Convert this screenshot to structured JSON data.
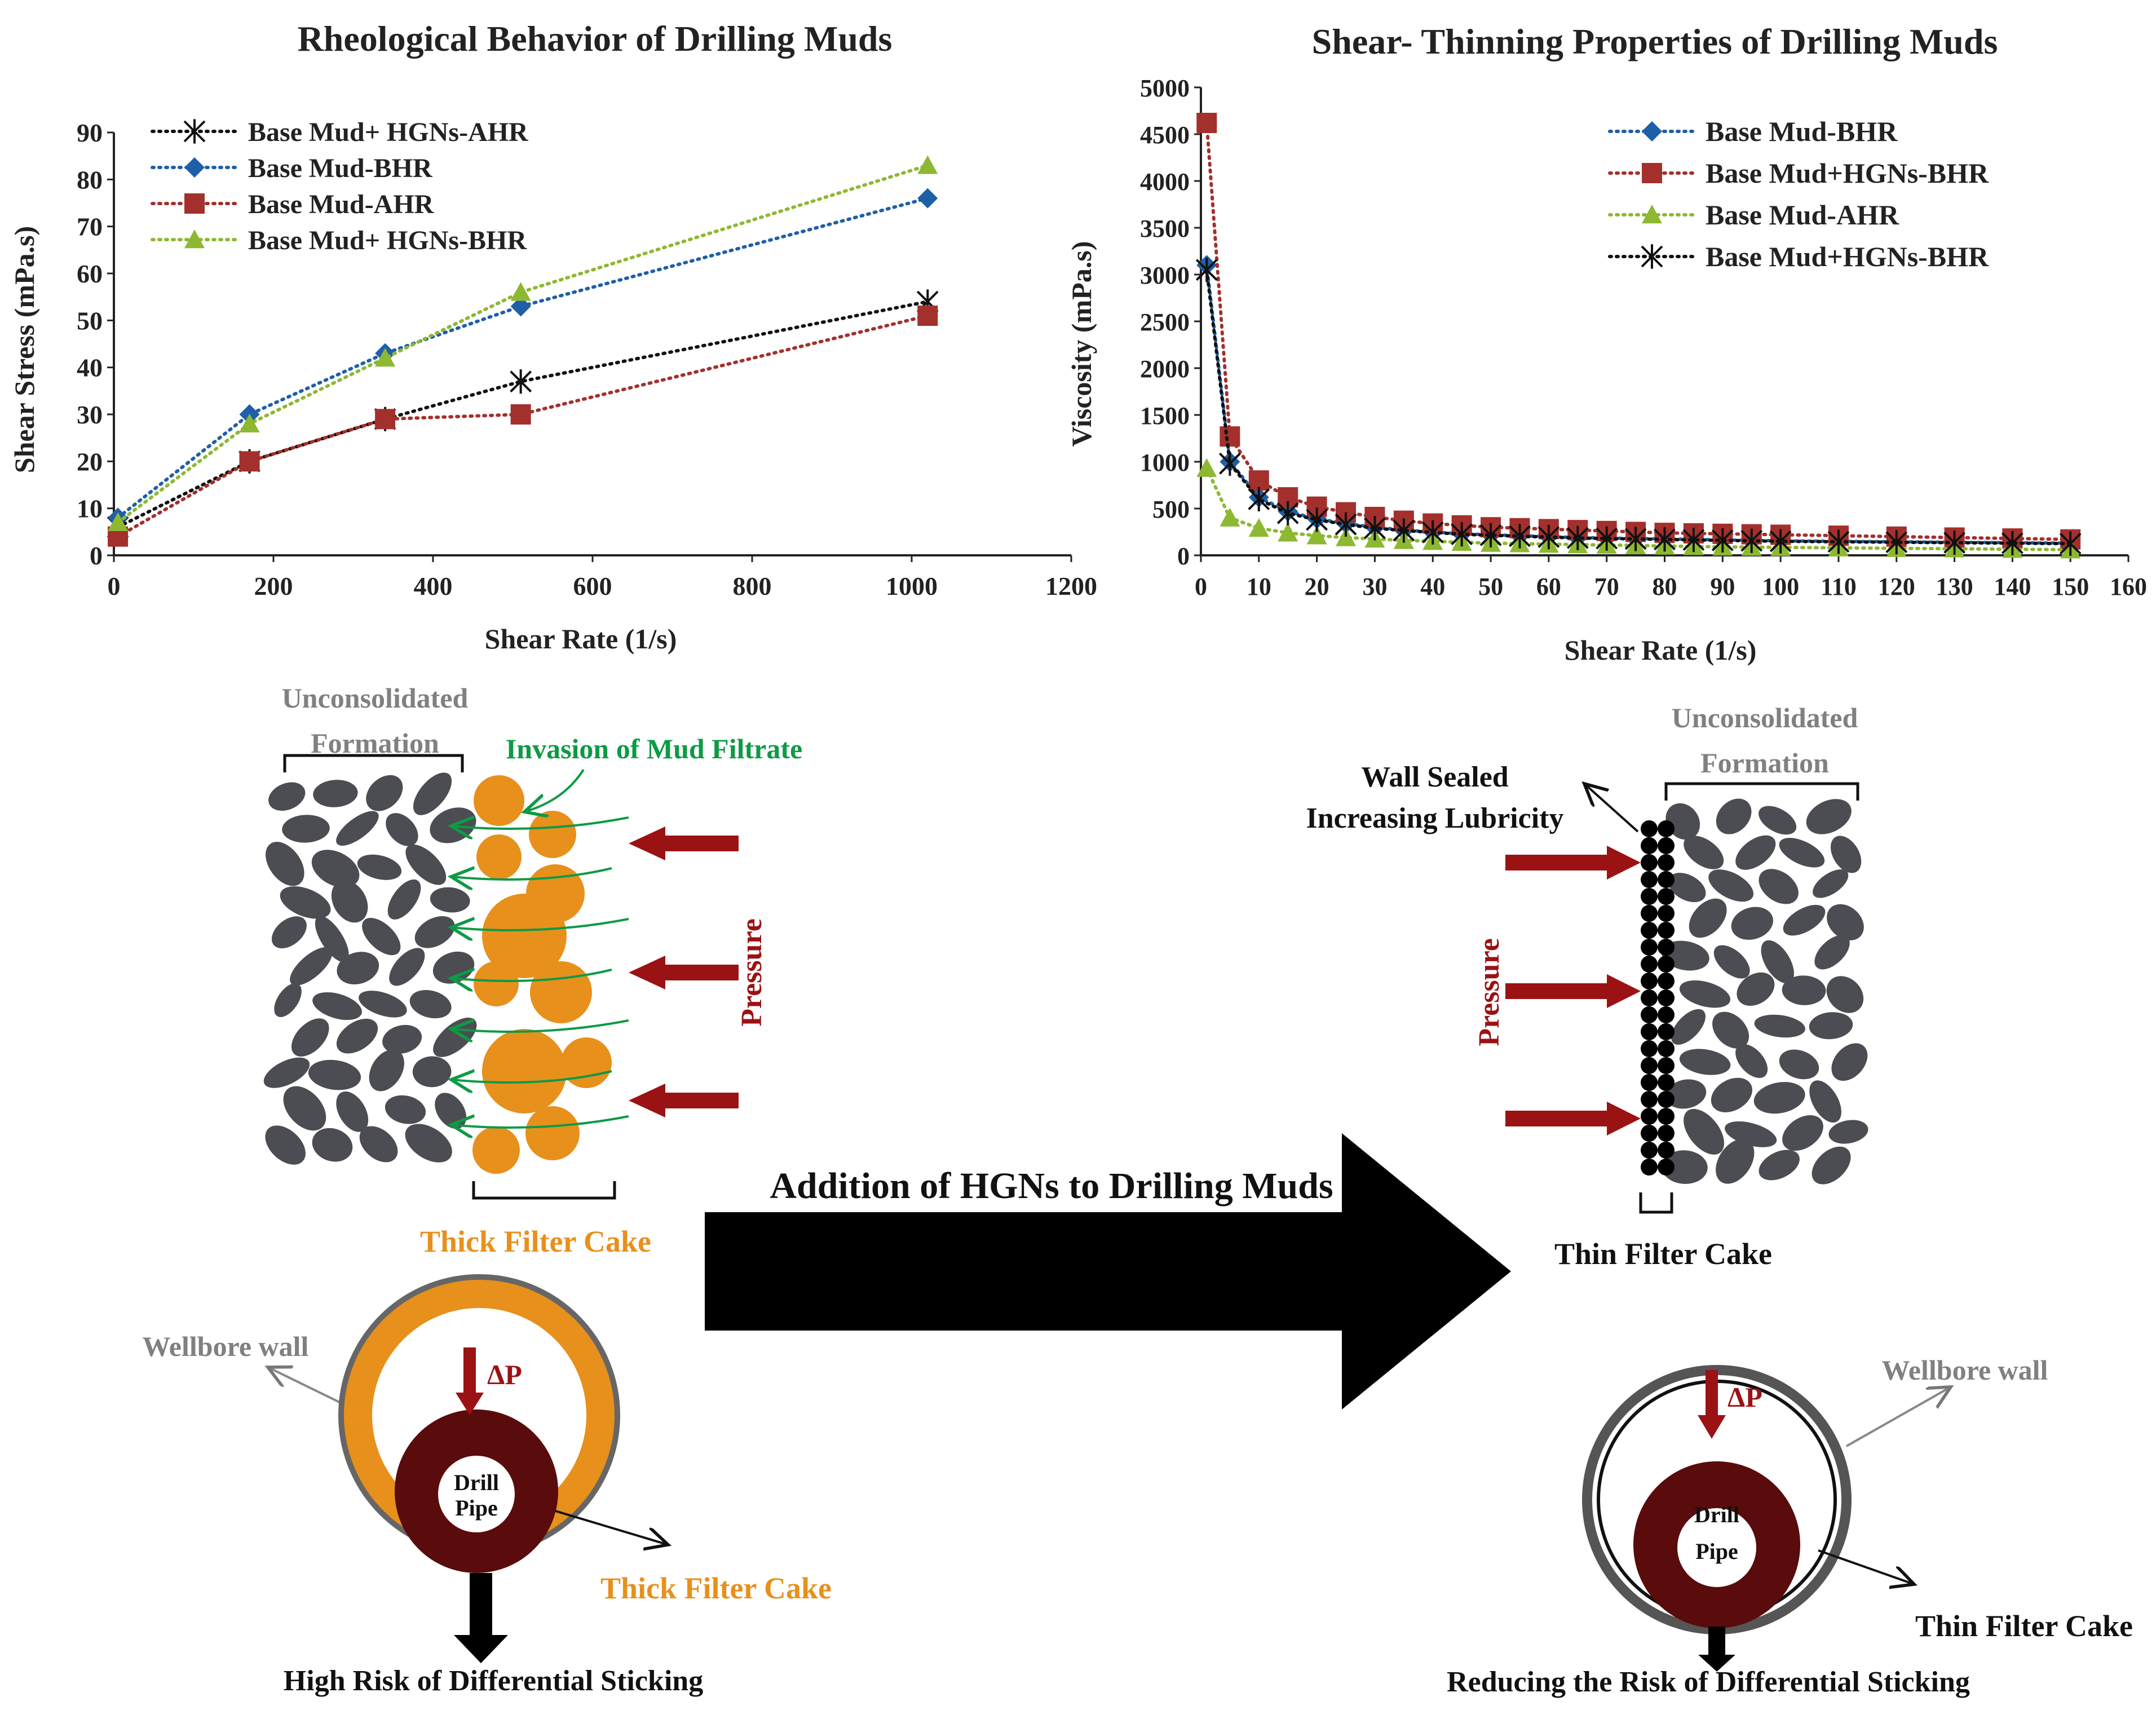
{
  "colors": {
    "stone": "#4b4d52",
    "orange": "#e8901c",
    "red_arrow": "#9b1214",
    "green_text": "#0e9a45",
    "gray_text": "#808080",
    "dark_pipe": "#5a0b0b",
    "blue": "#1f5fa8",
    "brown": "#a3302c",
    "green": "#8db832",
    "black": "#111111"
  },
  "chart_data": [
    {
      "type": "line",
      "title": "Rheological Behavior of Drilling Muds",
      "xlabel": "Shear  Rate (1/s)",
      "ylabel": "Shear Stress (mPa.s)",
      "xlim": [
        0,
        1200
      ],
      "ylim": [
        0,
        90
      ],
      "xticks": [
        "0",
        "200",
        "400",
        "600",
        "800",
        "1000",
        "1200"
      ],
      "yticks": [
        "0",
        "10",
        "20",
        "30",
        "40",
        "50",
        "60",
        "70",
        "80",
        "90"
      ],
      "legend_position": "top-left",
      "series": [
        {
          "name": "Base Mud+ HGNs-AHR",
          "color": "#111111",
          "marker": "star",
          "x": [
            5,
            170,
            340,
            510,
            1020
          ],
          "values": [
            6,
            20,
            29,
            37,
            54
          ]
        },
        {
          "name": "Base Mud-BHR",
          "color": "#1f5fa8",
          "marker": "diamond",
          "x": [
            5,
            170,
            340,
            510,
            1020
          ],
          "values": [
            8,
            30,
            43,
            53,
            76
          ]
        },
        {
          "name": "Base Mud-AHR",
          "color": "#a3302c",
          "marker": "square",
          "x": [
            5,
            170,
            340,
            510,
            1020
          ],
          "values": [
            4,
            20,
            29,
            30,
            51
          ]
        },
        {
          "name": "Base Mud+ HGNs-BHR",
          "color": "#8db832",
          "marker": "triangle",
          "x": [
            5,
            170,
            340,
            510,
            1020
          ],
          "values": [
            7,
            28,
            42,
            56,
            83
          ]
        }
      ]
    },
    {
      "type": "line",
      "title": "Shear- Thinning Properties of Drilling Muds",
      "xlabel": "Shear Rate (1/s)",
      "ylabel": "Viscosity (mPa.s)",
      "xlim": [
        0,
        160
      ],
      "ylim": [
        0,
        5000
      ],
      "xticks": [
        "0",
        "10",
        "20",
        "30",
        "40",
        "50",
        "60",
        "70",
        "80",
        "90",
        "100",
        "110",
        "120",
        "130",
        "140",
        "150",
        "160"
      ],
      "yticks": [
        "0",
        "500",
        "1000",
        "1500",
        "2000",
        "2500",
        "3000",
        "3500",
        "4000",
        "4500",
        "5000"
      ],
      "legend_position": "top-right",
      "x": [
        1,
        5,
        10,
        15,
        20,
        25,
        30,
        35,
        40,
        45,
        50,
        55,
        60,
        65,
        70,
        75,
        80,
        85,
        90,
        95,
        100,
        110,
        120,
        130,
        140,
        150
      ],
      "series": [
        {
          "name": "Base Mud-BHR",
          "color": "#1f5fa8",
          "marker": "diamond",
          "values": [
            3100,
            1000,
            620,
            470,
            390,
            340,
            300,
            270,
            250,
            230,
            220,
            210,
            200,
            190,
            185,
            180,
            175,
            170,
            165,
            160,
            155,
            150,
            145,
            140,
            135,
            130
          ]
        },
        {
          "name": "Base Mud+HGNs-BHR",
          "color": "#a3302c",
          "marker": "square",
          "values": [
            4620,
            1270,
            800,
            620,
            520,
            460,
            410,
            370,
            340,
            320,
            300,
            290,
            280,
            270,
            260,
            250,
            240,
            235,
            230,
            225,
            220,
            210,
            200,
            190,
            180,
            170
          ]
        },
        {
          "name": "Base Mud-AHR",
          "color": "#8db832",
          "marker": "triangle",
          "values": [
            930,
            400,
            290,
            240,
            210,
            190,
            175,
            160,
            150,
            140,
            130,
            125,
            120,
            115,
            110,
            105,
            100,
            95,
            90,
            88,
            85,
            80,
            75,
            70,
            65,
            60
          ]
        },
        {
          "name": "Base Mud+HGNs-BHR",
          "color": "#111111",
          "marker": "star",
          "values": [
            3050,
            980,
            600,
            450,
            380,
            330,
            290,
            265,
            245,
            225,
            215,
            205,
            195,
            185,
            180,
            175,
            170,
            165,
            160,
            155,
            150,
            145,
            140,
            135,
            130,
            125
          ]
        }
      ]
    }
  ],
  "diagram": {
    "left_formation_label_1": "Unconsolidated",
    "left_formation_label_2": "Formation",
    "invasion_label": "Invasion of Mud Filtrate",
    "pressure_left": "Pressure",
    "thick_filter_cake": "Thick Filter Cake",
    "addition_label": "Addition of HGNs to Drilling Muds",
    "wall_sealed": "Wall Sealed",
    "increasing_lubricity": "Increasing Lubricity",
    "right_formation_label_1": "Unconsolidated",
    "right_formation_label_2": "Formation",
    "pressure_right": "Pressure",
    "thin_filter_cake": "Thin Filter Cake",
    "wellbore_wall_left": "Wellbore wall",
    "delta_p_left": "ΔP",
    "drill_left_1": "Drill",
    "drill_left_2": "Pipe",
    "thick_filter_cake_bottom": "Thick Filter Cake",
    "high_risk": "High Risk of Differential Sticking",
    "wellbore_wall_right": "Wellbore wall",
    "delta_p_right": "ΔP",
    "drill_right_1": "Drill",
    "drill_right_2": "Pipe",
    "thin_filter_cake_bottom": "Thin Filter Cake",
    "reducing_risk": "Reducing the Risk of Differential Sticking"
  }
}
